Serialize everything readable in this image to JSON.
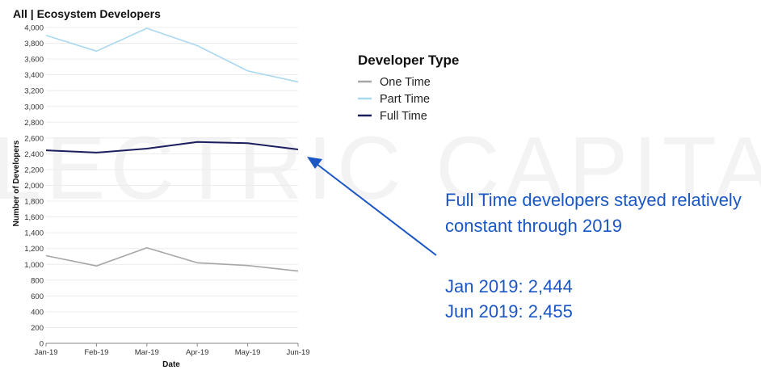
{
  "chart_data": {
    "type": "line",
    "title": "All | Ecosystem Developers",
    "xlabel": "Date",
    "ylabel": "Number of Developers",
    "categories": [
      "Jan-19",
      "Feb-19",
      "Mar-19",
      "Apr-19",
      "May-19",
      "Jun-19"
    ],
    "ylim": [
      0,
      4000
    ],
    "yticks": [
      0,
      200,
      400,
      600,
      800,
      1000,
      1200,
      1400,
      1600,
      1800,
      2000,
      2200,
      2400,
      2600,
      2800,
      3000,
      3200,
      3400,
      3600,
      3800,
      4000
    ],
    "ytick_labels": [
      "0",
      "200",
      "400",
      "600",
      "800",
      "1,000",
      "1,200",
      "1,400",
      "1,600",
      "1,800",
      "2,000",
      "2,200",
      "2,400",
      "2,600",
      "2,800",
      "3,000",
      "3,200",
      "3,400",
      "3,600",
      "3,800",
      "4,000"
    ],
    "grid": true,
    "legend": {
      "title": "Developer Type",
      "placement": "right"
    },
    "series": [
      {
        "name": "One Time",
        "color": "#a6a6a6",
        "values": [
          1110,
          980,
          1210,
          1020,
          985,
          915
        ]
      },
      {
        "name": "Part Time",
        "color": "#a9d8f0",
        "values": [
          3900,
          3700,
          3990,
          3770,
          3450,
          3310
        ]
      },
      {
        "name": "Full Time",
        "color": "#1b1d5e",
        "values": [
          2444,
          2415,
          2465,
          2550,
          2535,
          2455
        ]
      }
    ],
    "annotation": {
      "lines": [
        "Full Time developers stayed relatively",
        "constant through 2019",
        "Jan 2019: 2,444",
        "Jun 2019: 2,455"
      ],
      "color": "#1a56c4"
    }
  },
  "watermark": {
    "text": "ELECTRIC CAPITAL"
  }
}
